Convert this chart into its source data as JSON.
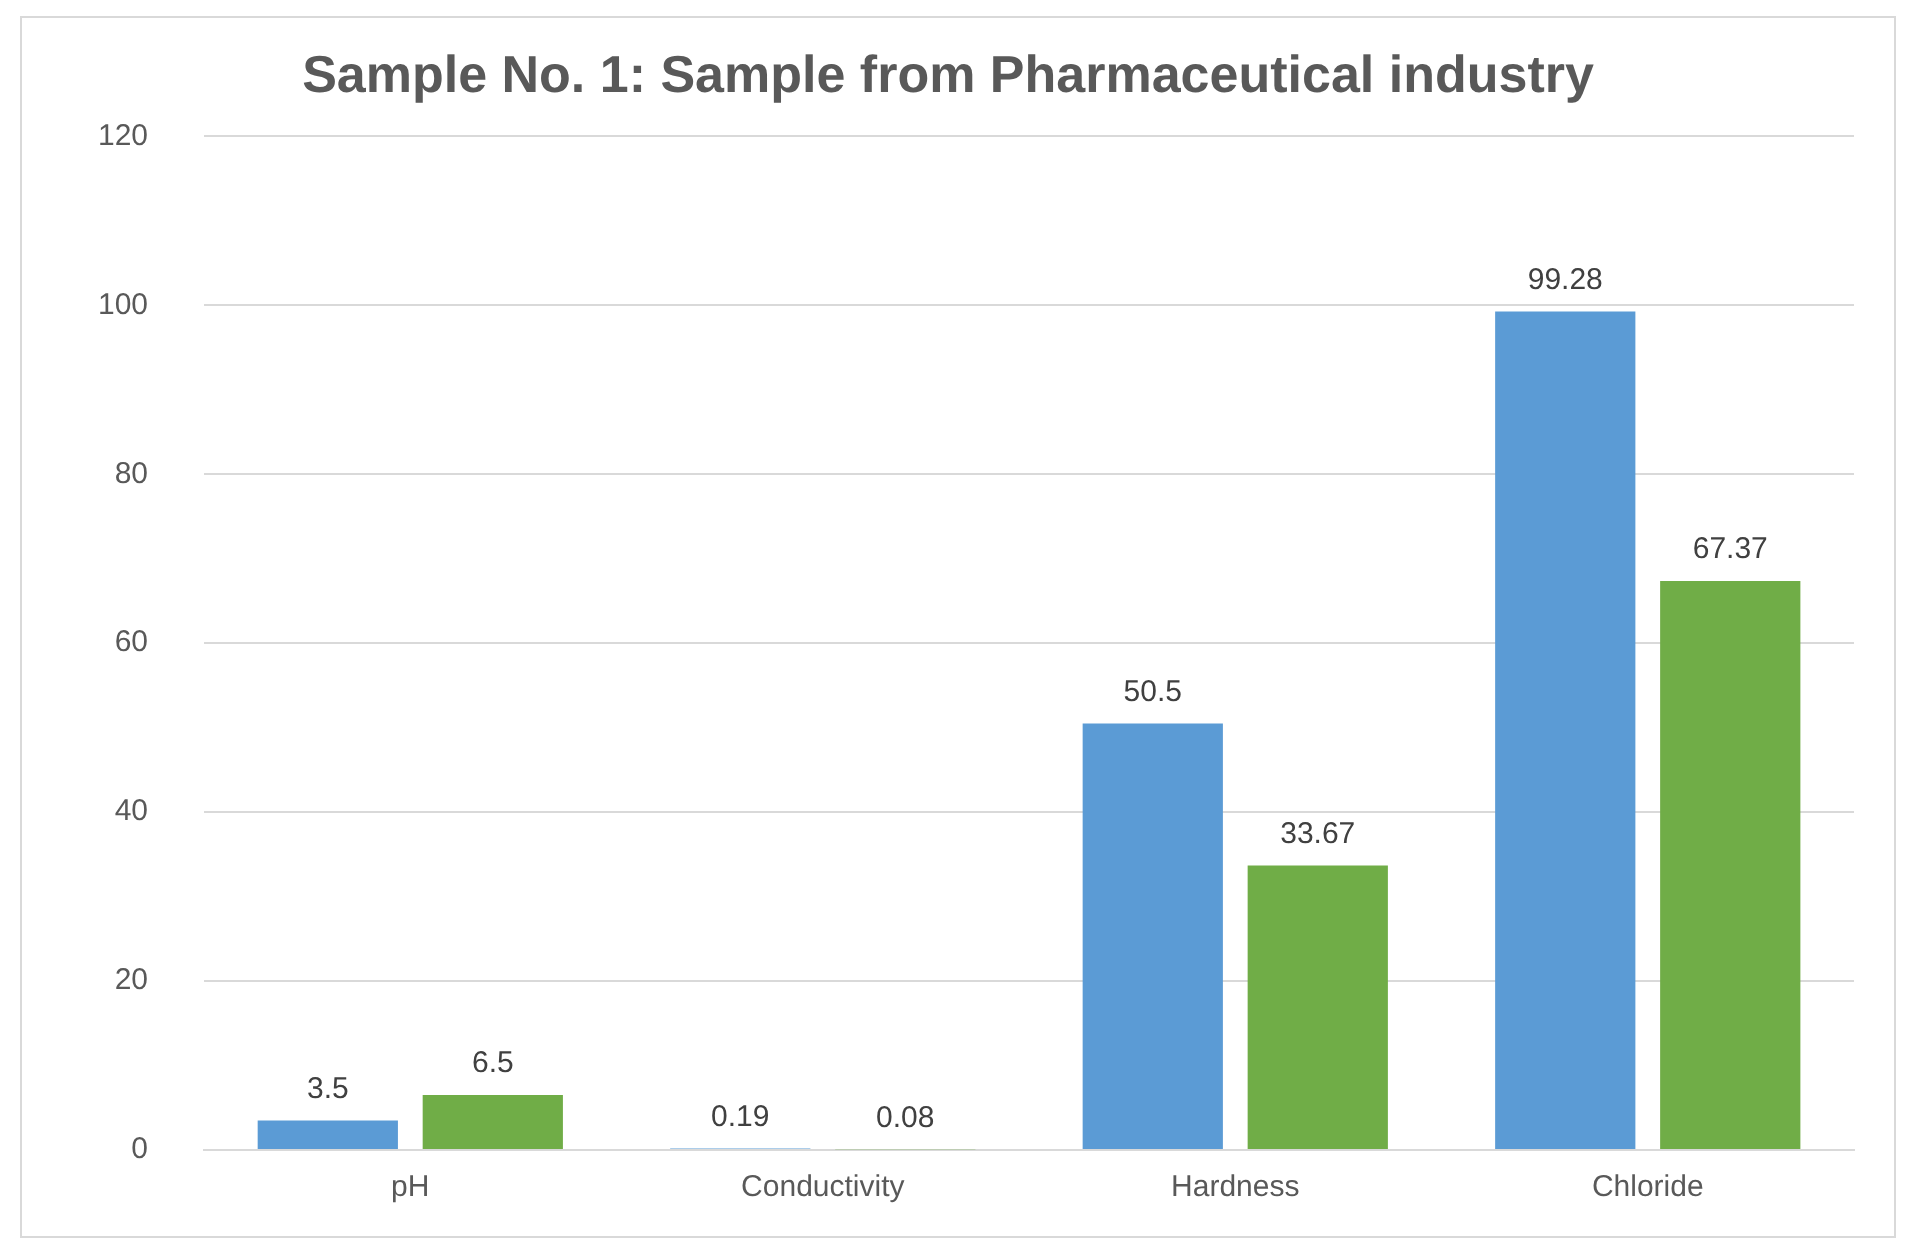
{
  "chart_data": {
    "type": "bar",
    "title": "Sample No. 1: Sample from Pharmaceutical industry",
    "categories": [
      "pH",
      "Conductivity",
      "Hardness",
      "Chloride"
    ],
    "series": [
      {
        "color": "#5b9bd5",
        "values": [
          3.5,
          0.19,
          50.5,
          99.28
        ]
      },
      {
        "color": "#70ad47",
        "values": [
          6.5,
          0.08,
          33.67,
          67.37
        ]
      }
    ],
    "ylim": [
      0,
      120
    ],
    "yticks": [
      0,
      20,
      40,
      60,
      80,
      100,
      120
    ],
    "grid": "y",
    "legend": false,
    "data_labels": true
  }
}
